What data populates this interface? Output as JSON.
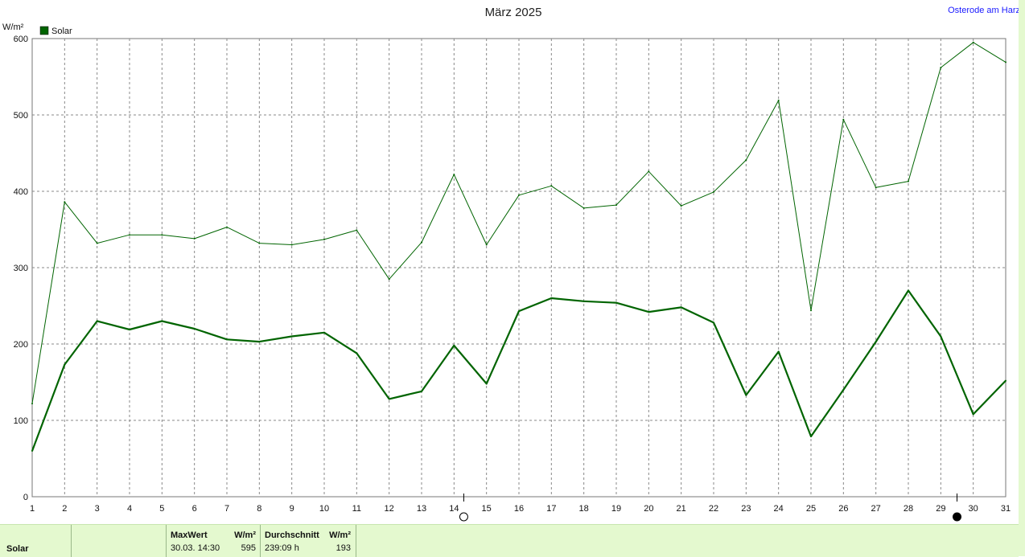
{
  "header": {
    "title": "März 2025",
    "station": "Osterode am Harz",
    "unit": "W/m²"
  },
  "legend": {
    "label": "Solar",
    "color": "#006400"
  },
  "chart_data": {
    "type": "line",
    "title": "März 2025",
    "ylabel": "W/m²",
    "xlabel": "",
    "ylim": [
      0,
      600
    ],
    "yticks": [
      0,
      100,
      200,
      300,
      400,
      500,
      600
    ],
    "xlim": [
      1,
      31
    ],
    "x": [
      1,
      2,
      3,
      4,
      5,
      6,
      7,
      8,
      9,
      10,
      11,
      12,
      13,
      14,
      15,
      16,
      17,
      18,
      19,
      20,
      21,
      22,
      23,
      24,
      25,
      26,
      27,
      28,
      29,
      30,
      31
    ],
    "grid": true,
    "legend_position": "top-left",
    "series": [
      {
        "name": "Solar",
        "style": "thick",
        "color": "#006400",
        "values": [
          60,
          173,
          230,
          219,
          230,
          220,
          206,
          203,
          210,
          215,
          188,
          128,
          138,
          198,
          148,
          243,
          260,
          256,
          254,
          242,
          248,
          228,
          133,
          190,
          79,
          140,
          203,
          270,
          210,
          108,
          152
        ]
      },
      {
        "style": "thin",
        "color": "#006400",
        "values": [
          122,
          386,
          332,
          343,
          343,
          338,
          353,
          332,
          330,
          337,
          349,
          285,
          333,
          422,
          330,
          395,
          407,
          378,
          382,
          426,
          381,
          399,
          441,
          519,
          244,
          494,
          405,
          413,
          562,
          595,
          569
        ]
      }
    ],
    "markers": [
      {
        "x": 14.3,
        "symbol": "full-moon"
      },
      {
        "x": 29.5,
        "symbol": "new-moon"
      }
    ]
  },
  "stats": {
    "label": "Solar",
    "max_header": "MaxWert",
    "max_unit": "W/m²",
    "max_time": "30.03.  14:30",
    "max_value": "595",
    "avg_header": "Durchschnitt",
    "avg_unit": "W/m²",
    "avg_duration": "239:09 h",
    "avg_value": "193"
  }
}
